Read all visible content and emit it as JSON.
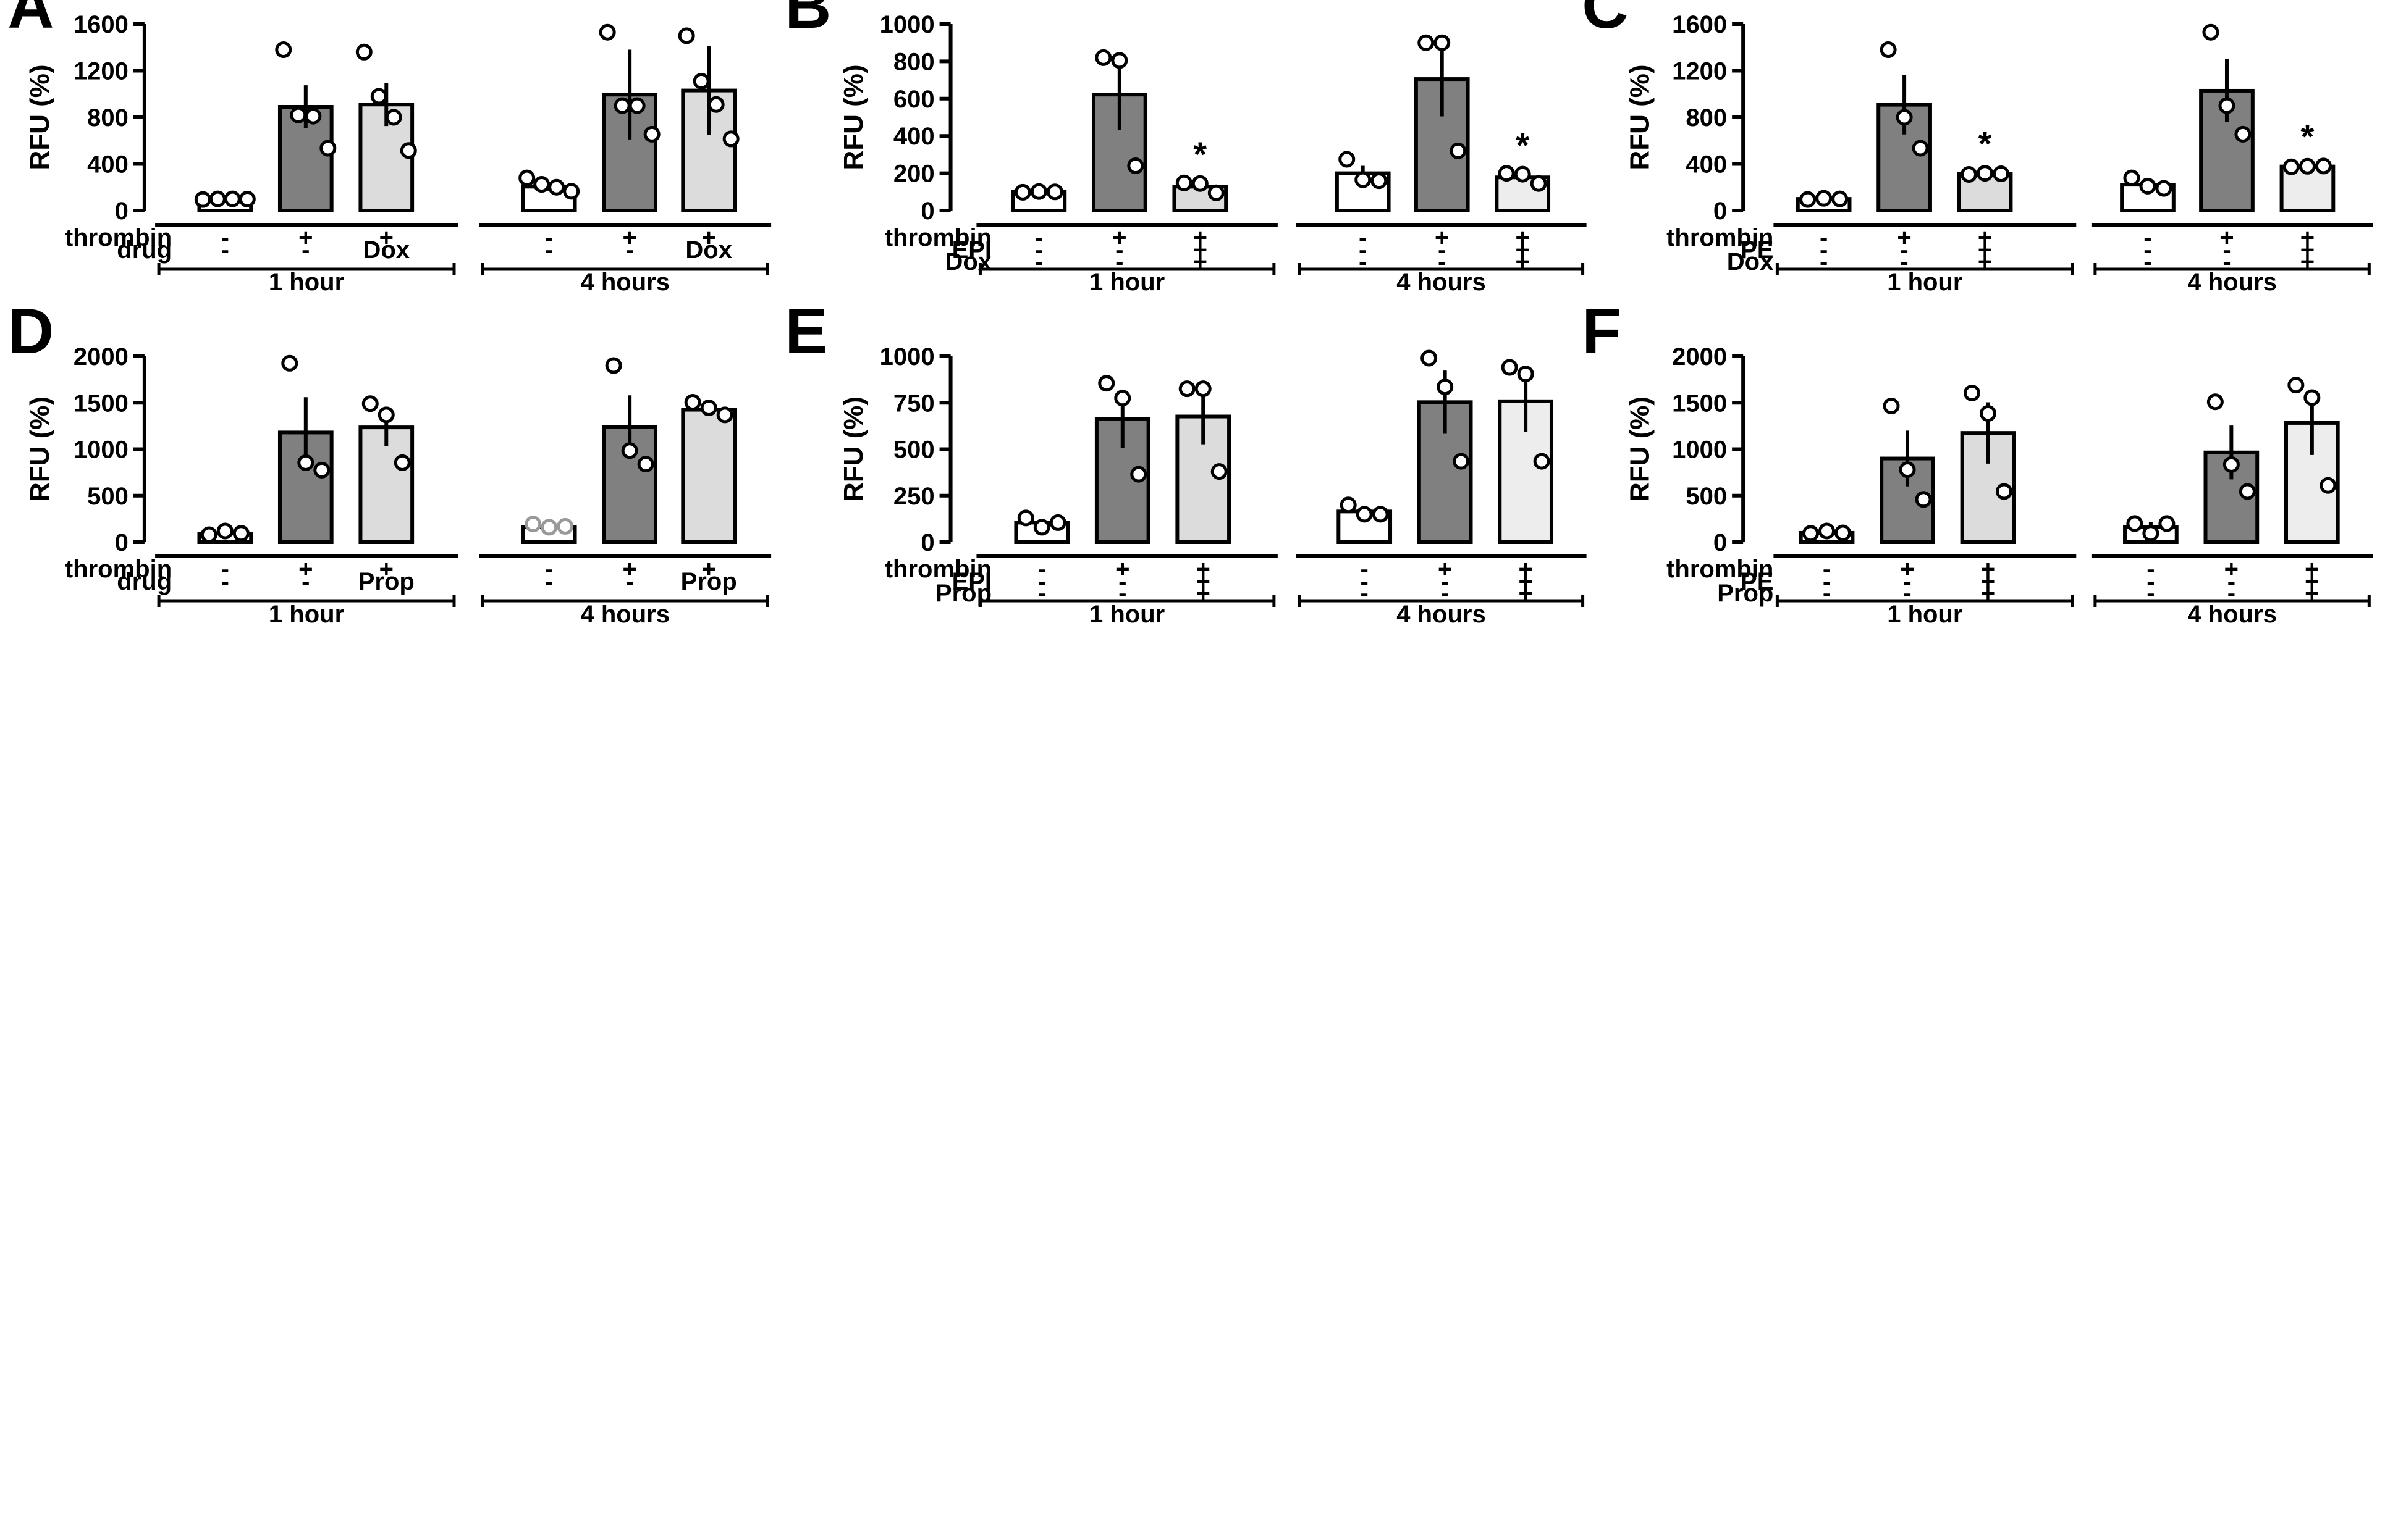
{
  "colors": {
    "baseline": "#ffffff",
    "thrombin": "#808080",
    "treated_light": "#dcdcdc",
    "treated_lighter": "#ededed",
    "outline": "#000000",
    "gray_point": "#999999"
  },
  "chart_data": [
    {
      "panel": "A",
      "type": "bar",
      "ylabel": "RFU (%)",
      "ylim": [
        0,
        1600
      ],
      "yticks": [
        "0",
        "400",
        "800",
        "1200",
        "1600"
      ],
      "row_labels": [
        "thrombin",
        "drug"
      ],
      "groups": [
        {
          "label": "1 hour",
          "bars": [
            {
              "value": 100,
              "err": 5,
              "color": "baseline",
              "points": [
                95,
                100,
                100,
                98
              ],
              "conds": [
                "-",
                "-"
              ]
            },
            {
              "value": 890,
              "err": 185,
              "color": "thrombin",
              "points": [
                1380,
                820,
                810,
                535
              ],
              "conds": [
                "+",
                "-"
              ]
            },
            {
              "value": 910,
              "err": 185,
              "color": "treated_light",
              "points": [
                1360,
                980,
                800,
                515
              ],
              "conds": [
                "+",
                "Dox"
              ]
            }
          ]
        },
        {
          "label": "4 hours",
          "bars": [
            {
              "value": 205,
              "err": 35,
              "color": "baseline",
              "points": [
                280,
                225,
                200,
                165
              ],
              "conds": [
                "-",
                "-"
              ]
            },
            {
              "value": 995,
              "err": 385,
              "color": "thrombin",
              "points": [
                1530,
                900,
                900,
                655
              ],
              "conds": [
                "+",
                "-"
              ]
            },
            {
              "value": 1030,
              "err": 380,
              "color": "treated_light",
              "points": [
                1500,
                1110,
                910,
                615
              ],
              "conds": [
                "+",
                "Dox"
              ]
            }
          ]
        }
      ]
    },
    {
      "panel": "B",
      "type": "bar",
      "ylabel": "RFU (%)",
      "ylim": [
        0,
        1000
      ],
      "yticks": [
        "0",
        "200",
        "400",
        "600",
        "800",
        "1000"
      ],
      "row_labels": [
        "thrombin",
        "EPI",
        "Dox"
      ],
      "groups": [
        {
          "label": "1 hour",
          "bars": [
            {
              "value": 100,
              "err": 3,
              "color": "baseline",
              "points": [
                98,
                102,
                100
              ],
              "conds": [
                "-",
                "-",
                "-"
              ]
            },
            {
              "value": 622,
              "err": 190,
              "color": "thrombin",
              "points": [
                820,
                805,
                240
              ],
              "conds": [
                "+",
                "-",
                "-"
              ]
            },
            {
              "value": 128,
              "err": 18,
              "color": "treated_light",
              "points": [
                148,
                145,
                95
              ],
              "conds": [
                "+",
                "+",
                "+"
              ],
              "sig": "*"
            }
          ]
        },
        {
          "label": "4 hours",
          "bars": [
            {
              "value": 200,
              "err": 40,
              "color": "baseline",
              "points": [
                275,
                165,
                160
              ],
              "conds": [
                "-",
                "-",
                "-"
              ]
            },
            {
              "value": 705,
              "err": 200,
              "color": "thrombin",
              "points": [
                900,
                900,
                320
              ],
              "conds": [
                "+",
                "-",
                "-"
              ]
            },
            {
              "value": 178,
              "err": 15,
              "color": "treated_lighter",
              "points": [
                200,
                195,
                145
              ],
              "conds": [
                "+",
                "+",
                "+"
              ],
              "sig": "*"
            }
          ]
        }
      ]
    },
    {
      "panel": "C",
      "type": "bar",
      "ylabel": "RFU (%)",
      "ylim": [
        0,
        1600
      ],
      "yticks": [
        "0",
        "400",
        "800",
        "1200",
        "1600"
      ],
      "row_labels": [
        "thrombin",
        "PE",
        "Dox"
      ],
      "groups": [
        {
          "label": "1 hour",
          "bars": [
            {
              "value": 100,
              "err": 5,
              "color": "baseline",
              "points": [
                95,
                105,
                100
              ],
              "conds": [
                "-",
                "-",
                "-"
              ]
            },
            {
              "value": 908,
              "err": 255,
              "color": "thrombin",
              "points": [
                1380,
                800,
                535
              ],
              "conds": [
                "+",
                "-",
                "-"
              ]
            },
            {
              "value": 315,
              "err": 8,
              "color": "treated_light",
              "points": [
                310,
                320,
                315
              ],
              "conds": [
                "+",
                "+",
                "+"
              ],
              "sig": "*"
            }
          ]
        },
        {
          "label": "4 hours",
          "bars": [
            {
              "value": 222,
              "err": 25,
              "color": "baseline",
              "points": [
                280,
                210,
                190
              ],
              "conds": [
                "-",
                "-",
                "-"
              ]
            },
            {
              "value": 1028,
              "err": 270,
              "color": "thrombin",
              "points": [
                1530,
                900,
                655
              ],
              "conds": [
                "+",
                "-",
                "-"
              ]
            },
            {
              "value": 378,
              "err": 5,
              "color": "treated_lighter",
              "points": [
                375,
                380,
                382
              ],
              "conds": [
                "+",
                "+",
                "+"
              ],
              "sig": "*"
            }
          ]
        }
      ]
    },
    {
      "panel": "D",
      "type": "bar",
      "ylabel": "RFU (%)",
      "ylim": [
        0,
        2000
      ],
      "yticks": [
        "0",
        "500",
        "1000",
        "1500",
        "2000"
      ],
      "row_labels": [
        "thrombin",
        "drug"
      ],
      "groups": [
        {
          "label": "1 hour",
          "bars": [
            {
              "value": 92,
              "err": 15,
              "color": "baseline",
              "points": [
                80,
                120,
                95
              ],
              "conds": [
                "-",
                "-"
              ]
            },
            {
              "value": 1180,
              "err": 380,
              "color": "thrombin",
              "points": [
                1925,
                855,
                775
              ],
              "conds": [
                "+",
                "-"
              ]
            },
            {
              "value": 1235,
              "err": 200,
              "color": "treated_light",
              "points": [
                1490,
                1370,
                855
              ],
              "conds": [
                "+",
                "Prop"
              ]
            }
          ]
        },
        {
          "label": "4 hours",
          "bars": [
            {
              "value": 165,
              "err": 12,
              "color": "baseline",
              "points": [
                195,
                160,
                170
              ],
              "conds": [
                "-",
                "-"
              ],
              "point_color": "gray_point"
            },
            {
              "value": 1240,
              "err": 340,
              "color": "thrombin",
              "points": [
                1900,
                985,
                840
              ],
              "conds": [
                "+",
                "-"
              ]
            },
            {
              "value": 1425,
              "err": 40,
              "color": "treated_light",
              "points": [
                1505,
                1445,
                1370
              ],
              "conds": [
                "+",
                "Prop"
              ]
            }
          ]
        }
      ]
    },
    {
      "panel": "E",
      "type": "bar",
      "ylabel": "RFU (%)",
      "ylim": [
        0,
        1000
      ],
      "yticks": [
        "0",
        "250",
        "500",
        "750",
        "1000"
      ],
      "row_labels": [
        "thrombin",
        "EPI",
        "Prop"
      ],
      "groups": [
        {
          "label": "1 hour",
          "bars": [
            {
              "value": 105,
              "err": 10,
              "color": "baseline",
              "points": [
                130,
                80,
                105
              ],
              "conds": [
                "-",
                "-",
                "-"
              ]
            },
            {
              "value": 663,
              "err": 155,
              "color": "thrombin",
              "points": [
                855,
                775,
                365
              ],
              "conds": [
                "+",
                "-",
                "-"
              ]
            },
            {
              "value": 676,
              "err": 150,
              "color": "treated_light",
              "points": [
                825,
                825,
                380
              ],
              "conds": [
                "+",
                "+",
                "+"
              ]
            }
          ]
        },
        {
          "label": "4 hours",
          "bars": [
            {
              "value": 165,
              "err": 15,
              "color": "baseline",
              "points": [
                200,
                150,
                150
              ],
              "conds": [
                "-",
                "-",
                "-"
              ]
            },
            {
              "value": 753,
              "err": 170,
              "color": "thrombin",
              "points": [
                990,
                835,
                435
              ],
              "conds": [
                "+",
                "-",
                "-"
              ]
            },
            {
              "value": 758,
              "err": 165,
              "color": "treated_lighter",
              "points": [
                940,
                905,
                435
              ],
              "conds": [
                "+",
                "+",
                "+"
              ]
            }
          ]
        }
      ]
    },
    {
      "panel": "F",
      "type": "bar",
      "ylabel": "RFU (%)",
      "ylim": [
        0,
        2000
      ],
      "yticks": [
        "0",
        "500",
        "1000",
        "1500",
        "2000"
      ],
      "row_labels": [
        "thrombin",
        "PE",
        "Prop"
      ],
      "groups": [
        {
          "label": "1 hour",
          "bars": [
            {
              "value": 100,
              "err": 10,
              "color": "baseline",
              "points": [
                95,
                120,
                100
              ],
              "conds": [
                "-",
                "-",
                "-"
              ]
            },
            {
              "value": 900,
              "err": 300,
              "color": "thrombin",
              "points": [
                1465,
                780,
                460
              ],
              "conds": [
                "+",
                "-",
                "-"
              ]
            },
            {
              "value": 1175,
              "err": 330,
              "color": "treated_light",
              "points": [
                1605,
                1385,
                545
              ],
              "conds": [
                "+",
                "+",
                "+"
              ]
            }
          ]
        },
        {
          "label": "4 hours",
          "bars": [
            {
              "value": 160,
              "err": 55,
              "color": "baseline",
              "points": [
                200,
                95,
                200
              ],
              "conds": [
                "-",
                "-",
                "-"
              ]
            },
            {
              "value": 965,
              "err": 290,
              "color": "thrombin",
              "points": [
                1510,
                835,
                545
              ],
              "conds": [
                "+",
                "-",
                "-"
              ]
            },
            {
              "value": 1283,
              "err": 345,
              "color": "treated_lighter",
              "points": [
                1690,
                1555,
                610
              ],
              "conds": [
                "+",
                "+",
                "+"
              ]
            }
          ]
        }
      ]
    }
  ]
}
